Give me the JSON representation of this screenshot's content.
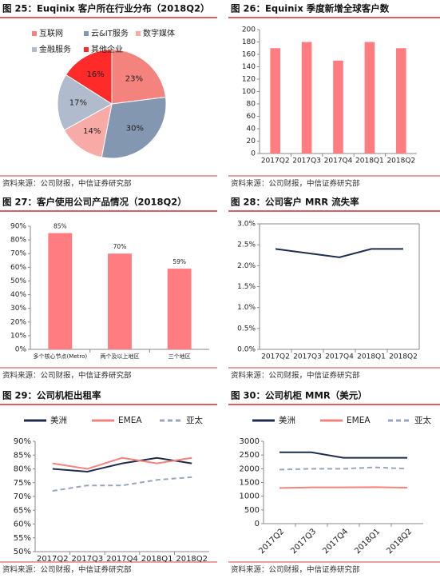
{
  "chart_data": [
    {
      "type": "pie",
      "title": "图 25：Euqinix 客户所在行业分布（2018Q2）",
      "source": "资料来源：公司财报，中信证券研究部",
      "categories": [
        "互联网",
        "云&IT服务",
        "数字媒体",
        "金融服务",
        "其他企业"
      ],
      "values": [
        23,
        30,
        14,
        17,
        16
      ],
      "value_labels": [
        "23%",
        "30%",
        "14%",
        "17%",
        "16%"
      ],
      "colors": [
        "#f4837d",
        "#8497b0",
        "#f7aaa6",
        "#b0bccd",
        "#ff2a2a"
      ]
    },
    {
      "type": "bar",
      "title": "图 26：Equinix 季度新增全球客户数",
      "source": "资料来源：公司财报，中信证券研究部",
      "categories": [
        "2017Q2",
        "2017Q3",
        "2017Q4",
        "2018Q1",
        "2018Q2"
      ],
      "values": [
        170,
        180,
        150,
        180,
        170
      ],
      "color": "#ff7c80",
      "ylim": [
        0,
        200
      ],
      "yticks": [
        0,
        20,
        40,
        60,
        80,
        100,
        120,
        140,
        160,
        180,
        200
      ]
    },
    {
      "type": "bar",
      "title": "图 27：客户使用公司产品情况（2018Q2）",
      "source": "资料来源：公司财报，中信证券研究部",
      "categories": [
        "多个核心节点(Metro)",
        "两个及以上地区",
        "三个地区"
      ],
      "values": [
        85,
        70,
        59
      ],
      "value_labels": [
        "85%",
        "70%",
        "59%"
      ],
      "color": "#ff7c80",
      "ylim": [
        0,
        90
      ],
      "yticks": [
        {
          "value": 0,
          "label": "0%"
        },
        {
          "value": 10,
          "label": "10%"
        },
        {
          "value": 20,
          "label": "20%"
        },
        {
          "value": 30,
          "label": "30%"
        },
        {
          "value": 40,
          "label": "40%"
        },
        {
          "value": 50,
          "label": "50%"
        },
        {
          "value": 60,
          "label": "60%"
        },
        {
          "value": 70,
          "label": "70%"
        },
        {
          "value": 80,
          "label": "80%"
        },
        {
          "value": 90,
          "label": "90%"
        }
      ]
    },
    {
      "type": "line",
      "title": "图 28：公司客户 MRR 流失率",
      "source": "资料来源：公司财报，中信证券研究部",
      "categories": [
        "2017Q2",
        "2017Q3",
        "2017Q4",
        "2018Q1",
        "2018Q2"
      ],
      "series": [
        {
          "color": "#1f2d4d",
          "values": [
            2.4,
            2.3,
            2.2,
            2.4,
            2.4
          ]
        }
      ],
      "ylim": [
        0,
        3
      ],
      "yticks": [
        {
          "value": 0,
          "label": "0.0%"
        },
        {
          "value": 0.5,
          "label": "0.5%"
        },
        {
          "value": 1,
          "label": "1.0%"
        },
        {
          "value": 1.5,
          "label": "1.5%"
        },
        {
          "value": 2,
          "label": "2.0%"
        },
        {
          "value": 2.5,
          "label": "2.5%"
        },
        {
          "value": 3,
          "label": "3.0%"
        }
      ]
    },
    {
      "type": "line",
      "title": "图 29：公司机柜出租率",
      "source": "资料来源：公司财报，中信证券研究部",
      "categories": [
        "2017Q2",
        "2017Q3",
        "2017Q4",
        "2018Q1",
        "2018Q2"
      ],
      "legend": "top",
      "series": [
        {
          "name": "美洲",
          "color": "#1f2d4d",
          "values": [
            80,
            79,
            82,
            84,
            82
          ]
        },
        {
          "name": "EMEA",
          "color": "#f4837d",
          "values": [
            82,
            80,
            84,
            82,
            84
          ]
        },
        {
          "name": "亚太",
          "color": "#97a6bd",
          "dashed": true,
          "values": [
            72,
            74,
            74,
            76,
            77
          ]
        }
      ],
      "ylim": [
        50,
        90
      ],
      "yticks": [
        {
          "value": 50,
          "label": "50%"
        },
        {
          "value": 55,
          "label": "55%"
        },
        {
          "value": 60,
          "label": "60%"
        },
        {
          "value": 65,
          "label": "65%"
        },
        {
          "value": 70,
          "label": "70%"
        },
        {
          "value": 75,
          "label": "75%"
        },
        {
          "value": 80,
          "label": "80%"
        },
        {
          "value": 85,
          "label": "85%"
        },
        {
          "value": 90,
          "label": "90%"
        }
      ]
    },
    {
      "type": "line",
      "title": "图 30：公司机柜 MMR（美元）",
      "source": "资料来源：公司财报，中信证券研究部",
      "categories": [
        "2017Q2",
        "2017Q3",
        "2017Q4",
        "2018Q1",
        "2018Q2"
      ],
      "legend": "top",
      "xlabel_rotation": -45,
      "series": [
        {
          "name": "美洲",
          "color": "#1f2d4d",
          "values": [
            2600,
            2600,
            2400,
            2400,
            2400
          ]
        },
        {
          "name": "EMEA",
          "color": "#f4837d",
          "values": [
            1300,
            1320,
            1320,
            1330,
            1310
          ]
        },
        {
          "name": "亚太",
          "color": "#97a6bd",
          "dashed": true,
          "values": [
            1970,
            2000,
            2000,
            2050,
            2000
          ]
        }
      ],
      "ylim": [
        0,
        3000
      ],
      "yticks": [
        0,
        500,
        1000,
        1500,
        2000,
        2500,
        3000
      ]
    }
  ]
}
